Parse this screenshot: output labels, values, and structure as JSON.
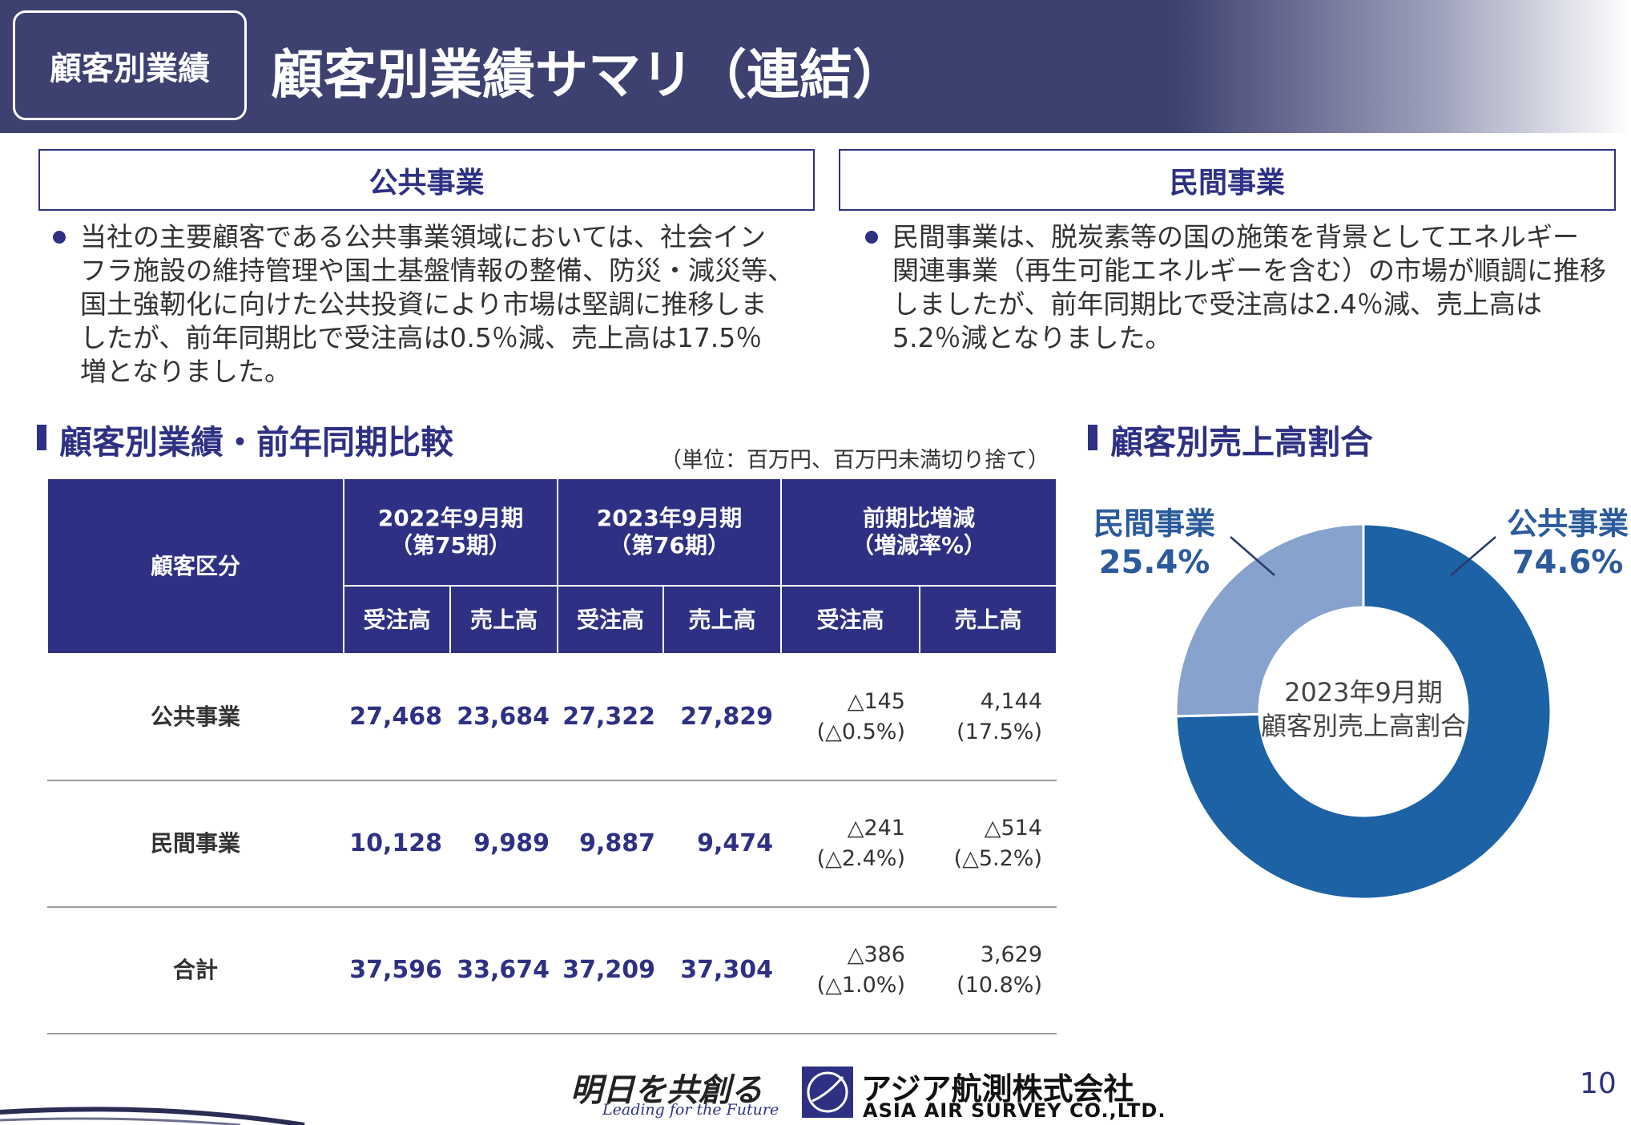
{
  "header": {
    "tag": "顧客別業績",
    "title": "顧客別業績サマリ（連結）"
  },
  "sections": {
    "public": {
      "heading": "公共事業",
      "lines": [
        "当社の主要顧客である公共事業領域においては、社会イン",
        "フラ施設の維持管理や国土基盤情報の整備、防災・減災等、",
        "国土強靭化に向けた公共投資により市場は堅調に推移しま",
        "したが、前年同期比で受注高は0.5％減、売上高は17.5％",
        "増となりました。"
      ]
    },
    "private": {
      "heading": "民間事業",
      "lines": [
        "民間事業は、脱炭素等の国の施策を背景としてエネルギー",
        "関連事業（再生可能エネルギーを含む）の市場が順調に推移",
        "しましたが、前年同期比で受注高は2.4％減、売上高は",
        "5.2％減となりました。"
      ]
    }
  },
  "table": {
    "title": "顧客別業績・前年同期比較",
    "note": "（単位：百万円、百万円未満切り捨て）",
    "category_header": "顧客区分",
    "groups": [
      [
        "2022年9月期",
        "（第75期）"
      ],
      [
        "2023年9月期",
        "（第76期）"
      ],
      [
        "前期比増減",
        "（増減率%）"
      ]
    ],
    "subheaders": [
      "受注高",
      "売上高",
      "受注高",
      "売上高",
      "受注高",
      "売上高"
    ],
    "rows": [
      {
        "name": "公共事業",
        "cells": [
          [
            "27,468"
          ],
          [
            "23,684"
          ],
          [
            "27,322"
          ],
          [
            "27,829"
          ],
          [
            "△145",
            "(△0.5%)"
          ],
          [
            "4,144",
            "(17.5%)"
          ]
        ]
      },
      {
        "name": "民間事業",
        "cells": [
          [
            "10,128"
          ],
          [
            "9,989"
          ],
          [
            "9,887"
          ],
          [
            "9,474"
          ],
          [
            "△241",
            "(△2.4%)"
          ],
          [
            "△514",
            "(△5.2%)"
          ]
        ]
      },
      {
        "name": "合計",
        "cells": [
          [
            "37,596"
          ],
          [
            "33,674"
          ],
          [
            "37,209"
          ],
          [
            "37,304"
          ],
          [
            "△386",
            "(△1.0%)"
          ],
          [
            "3,629",
            "(10.8%)"
          ]
        ]
      }
    ]
  },
  "chart_data": {
    "type": "pie",
    "title": "顧客別売上高割合",
    "center_label": [
      "2023年9月期",
      "顧客別売上高割合"
    ],
    "categories": [
      "公共事業",
      "民間事業"
    ],
    "values": [
      74.6,
      25.4
    ],
    "value_labels": [
      "74.6%",
      "25.4%"
    ],
    "colors": [
      "#1c62a5",
      "#87a2cd"
    ],
    "donut": true
  },
  "footer": {
    "slogan": "明日を共創る",
    "tagline": "Leading for the Future",
    "company_ja": "アジア航測株式会社",
    "company_en": "ASIA AIR SURVEY CO.,LTD.",
    "page": "10"
  }
}
